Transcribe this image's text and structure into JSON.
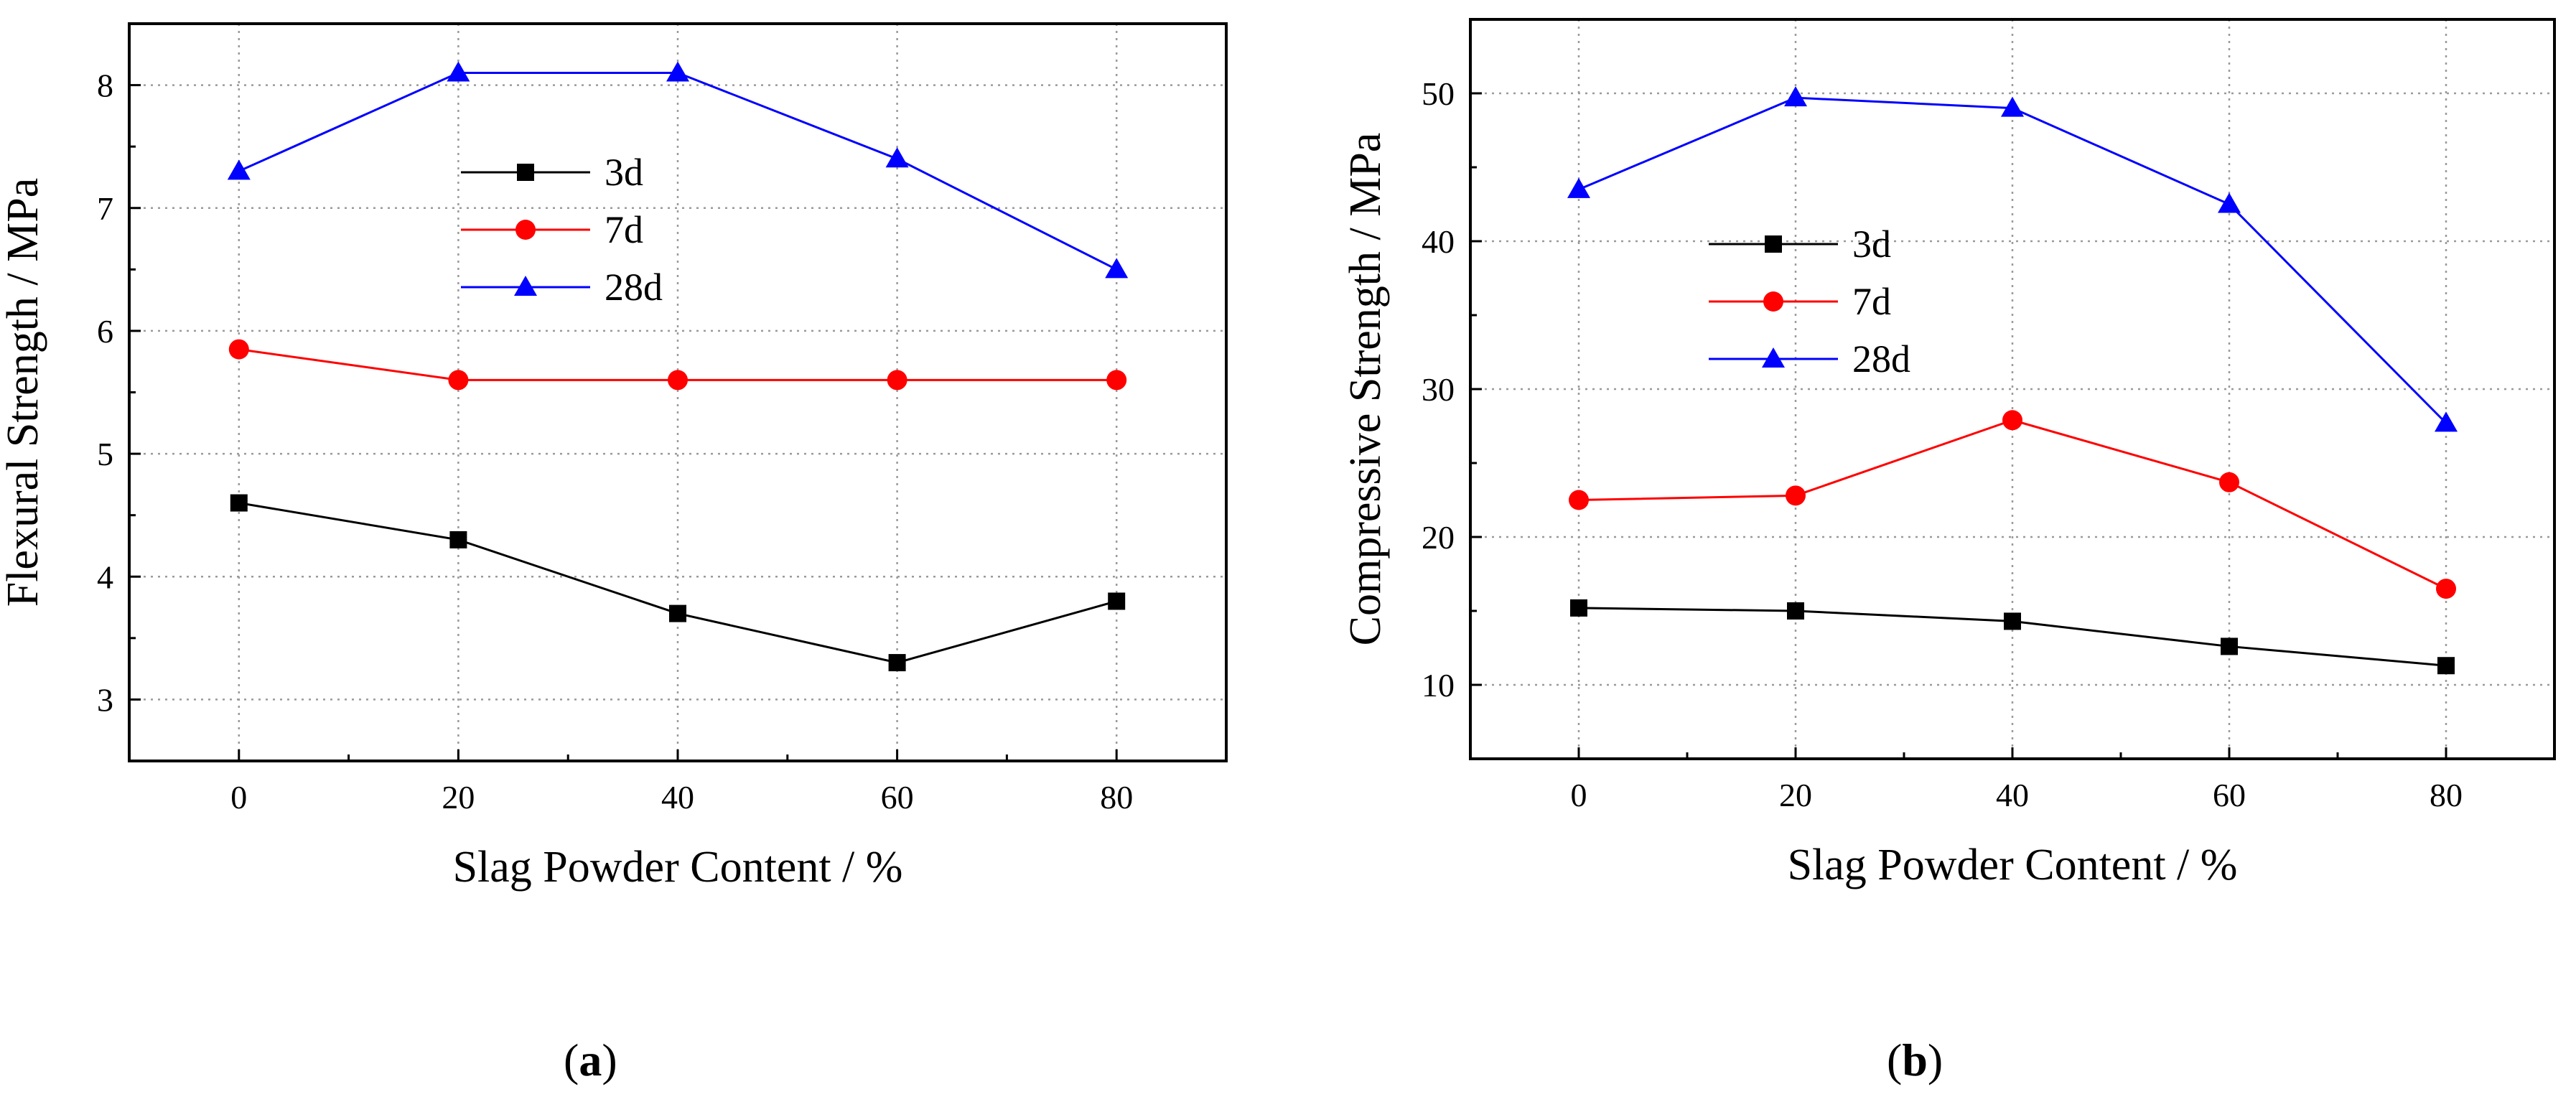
{
  "chart_data": [
    {
      "id": "a",
      "type": "line",
      "panel_label": "a",
      "title": "",
      "xlabel": "Slag Powder Content / %",
      "ylabel": "Flexural Strength / MPa",
      "x": [
        0,
        20,
        40,
        60,
        80
      ],
      "xlim": [
        -10,
        90
      ],
      "ylim": [
        2.5,
        8.5
      ],
      "xticks": [
        0,
        20,
        40,
        60,
        80
      ],
      "yticks": [
        3,
        4,
        5,
        6,
        7,
        8
      ],
      "grid": true,
      "legend": "upper-middle",
      "series": [
        {
          "name": "3d",
          "color": "#000000",
          "marker": "square",
          "values": [
            4.6,
            4.3,
            3.7,
            3.3,
            3.8
          ]
        },
        {
          "name": "7d",
          "color": "#ff0000",
          "marker": "circle",
          "values": [
            5.85,
            5.6,
            5.6,
            5.6,
            5.6
          ]
        },
        {
          "name": "28d",
          "color": "#0000ff",
          "marker": "triangle",
          "values": [
            7.3,
            8.1,
            8.1,
            7.4,
            6.5
          ]
        }
      ]
    },
    {
      "id": "b",
      "type": "line",
      "panel_label": "b",
      "title": "",
      "xlabel": "Slag Powder Content / %",
      "ylabel": "Compressive Strength / MPa",
      "x": [
        0,
        20,
        40,
        60,
        80
      ],
      "xlim": [
        -10,
        90
      ],
      "ylim": [
        5,
        55
      ],
      "xticks": [
        0,
        20,
        40,
        60,
        80
      ],
      "yticks": [
        10,
        20,
        30,
        40,
        50
      ],
      "grid": true,
      "legend": "upper-left",
      "series": [
        {
          "name": "3d",
          "color": "#000000",
          "marker": "square",
          "values": [
            15.2,
            15.0,
            14.3,
            12.6,
            11.3
          ]
        },
        {
          "name": "7d",
          "color": "#ff0000",
          "marker": "circle",
          "values": [
            22.5,
            22.8,
            27.9,
            23.7,
            16.5
          ]
        },
        {
          "name": "28d",
          "color": "#0000ff",
          "marker": "triangle",
          "values": [
            43.5,
            49.7,
            49.0,
            42.5,
            27.7
          ]
        }
      ]
    }
  ]
}
